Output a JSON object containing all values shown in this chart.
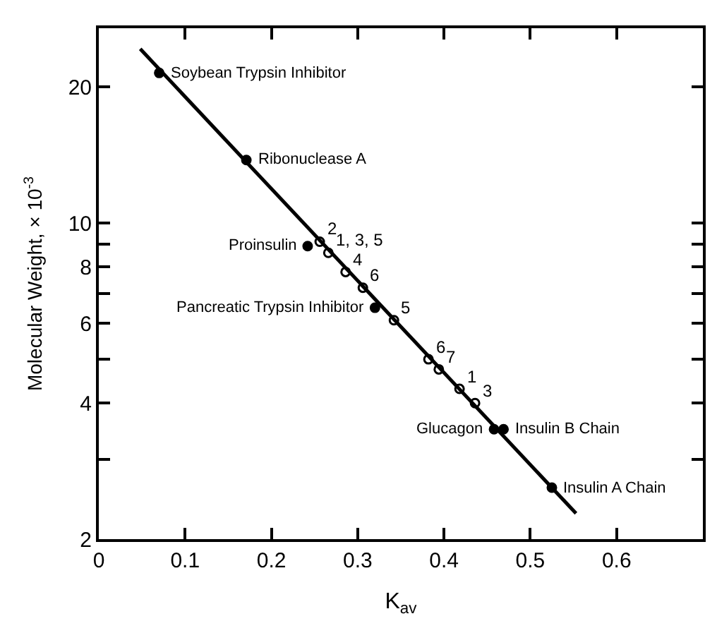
{
  "chart_data": {
    "type": "scatter",
    "xlabel": "K$_{av}$",
    "ylabel": "Molecular Weight, × 10$^{-3}$",
    "series": [
      {
        "marker": "circle",
        "color": "#000000",
        "x": [
          0.07,
          0.171,
          0.242,
          0.32,
          0.458,
          0.469,
          0.525
        ],
        "values": [
          21.5,
          13.8,
          8.9,
          6.5,
          3.5,
          3.5,
          2.6
        ]
      },
      {
        "marker": "circle",
        "color": "#000000",
        "x": [
          0.256,
          0.266,
          0.286,
          0.306,
          0.342,
          0.382,
          0.394,
          0.418,
          0.436
        ],
        "values": [
          9.1,
          8.6,
          7.8,
          7.2,
          6.1,
          5.0,
          4.75,
          4.3,
          4.0
        ]
      },
      {
        "type": "line",
        "color": "#000000",
        "line_style": "solid",
        "x": [
          0.048,
          0.553
        ],
        "values": [
          24.3,
          2.28
        ]
      }
    ],
    "annotations": [
      {
        "text": "Soybean Trypsin Inhibitor",
        "x": 0.07,
        "y": 21.5
      },
      {
        "text": "Ribonuclease A",
        "x": 0.171,
        "y": 13.8
      },
      {
        "text": "Proinsulin",
        "x": 0.242,
        "y": 8.9
      },
      {
        "text": "Pancreatic Trypsin Inhibitor",
        "x": 0.32,
        "y": 6.5
      },
      {
        "text": "Glucagon",
        "x": 0.458,
        "y": 3.5
      },
      {
        "text": "Insulin B Chain",
        "x": 0.469,
        "y": 3.5
      },
      {
        "text": "Insulin A Chain",
        "x": 0.525,
        "y": 2.6
      },
      {
        "text": "2",
        "x": 0.256,
        "y": 9.1
      },
      {
        "text": "1, 3, 5",
        "x": 0.266,
        "y": 8.6
      },
      {
        "text": "4",
        "x": 0.286,
        "y": 7.8
      },
      {
        "text": "6",
        "x": 0.306,
        "y": 7.2
      },
      {
        "text": "5",
        "x": 0.342,
        "y": 6.1
      },
      {
        "text": "6",
        "x": 0.382,
        "y": 5.0
      },
      {
        "text": "7",
        "x": 0.394,
        "y": 4.75
      },
      {
        "text": "1",
        "x": 0.418,
        "y": 4.3
      },
      {
        "text": "3",
        "x": 0.436,
        "y": 4.0
      }
    ],
    "xlim": [
      0,
      0.7
    ],
    "xticks": [
      0,
      0.1,
      0.2,
      0.3,
      0.4,
      0.5,
      0.6
    ],
    "ylim": [
      2,
      27
    ],
    "log": "y",
    "yticks": [
      2,
      {
        "value": 3,
        "label": null
      },
      4,
      {
        "value": 5,
        "label": null
      },
      6,
      {
        "value": 7,
        "label": null
      },
      8,
      {
        "value": 9,
        "label": null
      },
      10,
      20
    ],
    "legend": false
  }
}
